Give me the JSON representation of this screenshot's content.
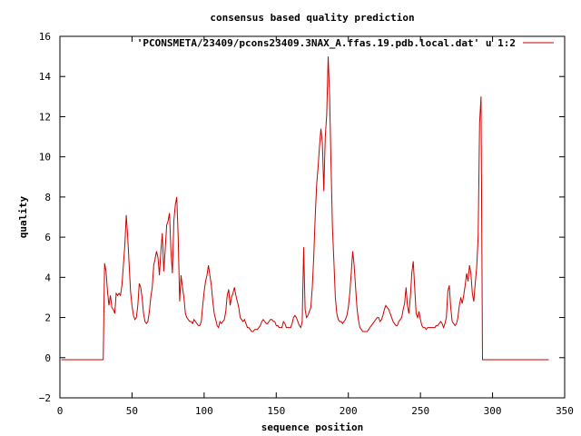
{
  "chart_data": {
    "type": "line",
    "title": "consensus based quality prediction",
    "xlabel": "sequence position",
    "ylabel": "quality",
    "xlim": [
      0,
      350
    ],
    "ylim": [
      -2,
      16
    ],
    "x_ticks": [
      0,
      50,
      100,
      150,
      200,
      250,
      300,
      350
    ],
    "y_ticks": [
      -2,
      0,
      2,
      4,
      6,
      8,
      10,
      12,
      14,
      16
    ],
    "grid": false,
    "legend_position": "top-right",
    "series": [
      {
        "name": "'PCONSMETA/23409/pcons23409.3NAX_A.ffas.19.pdb.local.dat' u 1:2",
        "color": "#cc0000",
        "points": [
          [
            1,
            -0.1
          ],
          [
            10,
            -0.1
          ],
          [
            20,
            -0.1
          ],
          [
            30,
            -0.1
          ],
          [
            31,
            4.7
          ],
          [
            32,
            4.3
          ],
          [
            33,
            3.3
          ],
          [
            34,
            2.6
          ],
          [
            35,
            3.1
          ],
          [
            36,
            2.5
          ],
          [
            37,
            2.4
          ],
          [
            38,
            2.2
          ],
          [
            39,
            3.2
          ],
          [
            40,
            3.1
          ],
          [
            41,
            3.2
          ],
          [
            42,
            3.1
          ],
          [
            43,
            3.6
          ],
          [
            44,
            4.6
          ],
          [
            45,
            5.6
          ],
          [
            46,
            7.1
          ],
          [
            47,
            6.0
          ],
          [
            48,
            4.6
          ],
          [
            49,
            3.3
          ],
          [
            50,
            2.6
          ],
          [
            51,
            2.1
          ],
          [
            52,
            1.9
          ],
          [
            53,
            2.0
          ],
          [
            54,
            2.6
          ],
          [
            55,
            3.7
          ],
          [
            56,
            3.5
          ],
          [
            57,
            3.0
          ],
          [
            58,
            2.2
          ],
          [
            59,
            1.8
          ],
          [
            60,
            1.7
          ],
          [
            61,
            1.8
          ],
          [
            62,
            2.3
          ],
          [
            63,
            3.0
          ],
          [
            64,
            3.5
          ],
          [
            65,
            4.6
          ],
          [
            66,
            4.9
          ],
          [
            67,
            5.3
          ],
          [
            68,
            5.0
          ],
          [
            69,
            4.1
          ],
          [
            70,
            5.3
          ],
          [
            71,
            6.2
          ],
          [
            72,
            4.3
          ],
          [
            73,
            5.4
          ],
          [
            74,
            6.6
          ],
          [
            75,
            6.8
          ],
          [
            76,
            7.2
          ],
          [
            77,
            5.3
          ],
          [
            78,
            4.2
          ],
          [
            79,
            6.8
          ],
          [
            80,
            7.6
          ],
          [
            81,
            8.0
          ],
          [
            82,
            6.0
          ],
          [
            83,
            2.8
          ],
          [
            84,
            4.1
          ],
          [
            85,
            3.5
          ],
          [
            86,
            3.0
          ],
          [
            87,
            2.2
          ],
          [
            88,
            2.0
          ],
          [
            89,
            1.9
          ],
          [
            90,
            1.8
          ],
          [
            91,
            1.8
          ],
          [
            92,
            1.7
          ],
          [
            93,
            1.9
          ],
          [
            94,
            1.8
          ],
          [
            95,
            1.7
          ],
          [
            96,
            1.6
          ],
          [
            97,
            1.6
          ],
          [
            98,
            1.8
          ],
          [
            99,
            2.6
          ],
          [
            100,
            3.3
          ],
          [
            101,
            3.8
          ],
          [
            102,
            4.1
          ],
          [
            103,
            4.6
          ],
          [
            104,
            4.1
          ],
          [
            105,
            3.6
          ],
          [
            106,
            2.8
          ],
          [
            107,
            2.2
          ],
          [
            108,
            1.9
          ],
          [
            109,
            1.6
          ],
          [
            110,
            1.5
          ],
          [
            111,
            1.8
          ],
          [
            112,
            1.7
          ],
          [
            113,
            1.8
          ],
          [
            114,
            1.9
          ],
          [
            115,
            2.3
          ],
          [
            116,
            3.1
          ],
          [
            117,
            3.4
          ],
          [
            118,
            2.6
          ],
          [
            119,
            3.0
          ],
          [
            120,
            3.2
          ],
          [
            121,
            3.5
          ],
          [
            122,
            3.1
          ],
          [
            123,
            2.8
          ],
          [
            124,
            2.5
          ],
          [
            125,
            2.0
          ],
          [
            126,
            1.9
          ],
          [
            127,
            1.8
          ],
          [
            128,
            1.9
          ],
          [
            129,
            1.7
          ],
          [
            130,
            1.5
          ],
          [
            131,
            1.5
          ],
          [
            132,
            1.4
          ],
          [
            133,
            1.3
          ],
          [
            134,
            1.3
          ],
          [
            135,
            1.4
          ],
          [
            136,
            1.4
          ],
          [
            137,
            1.4
          ],
          [
            138,
            1.5
          ],
          [
            139,
            1.6
          ],
          [
            140,
            1.8
          ],
          [
            141,
            1.9
          ],
          [
            142,
            1.8
          ],
          [
            143,
            1.7
          ],
          [
            144,
            1.7
          ],
          [
            145,
            1.8
          ],
          [
            146,
            1.9
          ],
          [
            147,
            1.9
          ],
          [
            148,
            1.8
          ],
          [
            149,
            1.8
          ],
          [
            150,
            1.6
          ],
          [
            151,
            1.6
          ],
          [
            152,
            1.5
          ],
          [
            153,
            1.5
          ],
          [
            154,
            1.5
          ],
          [
            155,
            1.8
          ],
          [
            156,
            1.7
          ],
          [
            157,
            1.5
          ],
          [
            158,
            1.5
          ],
          [
            159,
            1.5
          ],
          [
            160,
            1.5
          ],
          [
            161,
            1.7
          ],
          [
            162,
            2.0
          ],
          [
            163,
            2.1
          ],
          [
            164,
            2.0
          ],
          [
            165,
            1.8
          ],
          [
            166,
            1.6
          ],
          [
            167,
            1.5
          ],
          [
            168,
            1.8
          ],
          [
            169,
            5.5
          ],
          [
            170,
            2.4
          ],
          [
            171,
            2.0
          ],
          [
            172,
            2.1
          ],
          [
            173,
            2.3
          ],
          [
            174,
            2.5
          ],
          [
            175,
            3.5
          ],
          [
            176,
            5.0
          ],
          [
            177,
            7.0
          ],
          [
            178,
            8.6
          ],
          [
            179,
            9.5
          ],
          [
            180,
            10.5
          ],
          [
            181,
            11.4
          ],
          [
            182,
            10.7
          ],
          [
            183,
            8.3
          ],
          [
            184,
            11.0
          ],
          [
            185,
            12.1
          ],
          [
            186,
            15.0
          ],
          [
            187,
            13.0
          ],
          [
            188,
            9.5
          ],
          [
            189,
            6.5
          ],
          [
            190,
            4.8
          ],
          [
            191,
            3.0
          ],
          [
            192,
            2.2
          ],
          [
            193,
            1.9
          ],
          [
            194,
            1.8
          ],
          [
            195,
            1.8
          ],
          [
            196,
            1.7
          ],
          [
            197,
            1.8
          ],
          [
            198,
            1.9
          ],
          [
            199,
            2.1
          ],
          [
            200,
            2.5
          ],
          [
            201,
            3.2
          ],
          [
            202,
            4.2
          ],
          [
            203,
            5.3
          ],
          [
            204,
            4.6
          ],
          [
            205,
            3.5
          ],
          [
            206,
            2.5
          ],
          [
            207,
            1.9
          ],
          [
            208,
            1.5
          ],
          [
            209,
            1.4
          ],
          [
            210,
            1.3
          ],
          [
            211,
            1.3
          ],
          [
            212,
            1.3
          ],
          [
            213,
            1.3
          ],
          [
            214,
            1.4
          ],
          [
            215,
            1.5
          ],
          [
            216,
            1.6
          ],
          [
            217,
            1.7
          ],
          [
            218,
            1.8
          ],
          [
            219,
            1.9
          ],
          [
            220,
            2.0
          ],
          [
            221,
            2.0
          ],
          [
            222,
            1.8
          ],
          [
            223,
            1.9
          ],
          [
            224,
            2.1
          ],
          [
            225,
            2.4
          ],
          [
            226,
            2.6
          ],
          [
            227,
            2.5
          ],
          [
            228,
            2.4
          ],
          [
            229,
            2.2
          ],
          [
            230,
            2.0
          ],
          [
            231,
            1.8
          ],
          [
            232,
            1.7
          ],
          [
            233,
            1.6
          ],
          [
            234,
            1.6
          ],
          [
            235,
            1.8
          ],
          [
            236,
            1.9
          ],
          [
            237,
            2.0
          ],
          [
            238,
            2.4
          ],
          [
            239,
            2.7
          ],
          [
            240,
            3.5
          ],
          [
            241,
            2.6
          ],
          [
            242,
            2.2
          ],
          [
            243,
            3.0
          ],
          [
            244,
            4.2
          ],
          [
            245,
            4.8
          ],
          [
            246,
            3.5
          ],
          [
            247,
            2.2
          ],
          [
            248,
            2.0
          ],
          [
            249,
            2.3
          ],
          [
            250,
            1.9
          ],
          [
            251,
            1.6
          ],
          [
            252,
            1.5
          ],
          [
            253,
            1.5
          ],
          [
            254,
            1.4
          ],
          [
            255,
            1.5
          ],
          [
            256,
            1.5
          ],
          [
            257,
            1.5
          ],
          [
            258,
            1.5
          ],
          [
            259,
            1.5
          ],
          [
            260,
            1.5
          ],
          [
            261,
            1.6
          ],
          [
            262,
            1.6
          ],
          [
            263,
            1.7
          ],
          [
            264,
            1.8
          ],
          [
            265,
            1.7
          ],
          [
            266,
            1.5
          ],
          [
            267,
            1.7
          ],
          [
            268,
            2.0
          ],
          [
            269,
            3.3
          ],
          [
            270,
            3.6
          ],
          [
            271,
            2.5
          ],
          [
            272,
            1.8
          ],
          [
            273,
            1.7
          ],
          [
            274,
            1.6
          ],
          [
            275,
            1.7
          ],
          [
            276,
            2.0
          ],
          [
            277,
            2.6
          ],
          [
            278,
            3.0
          ],
          [
            279,
            2.7
          ],
          [
            280,
            3.1
          ],
          [
            281,
            3.6
          ],
          [
            282,
            4.2
          ],
          [
            283,
            3.8
          ],
          [
            284,
            4.6
          ],
          [
            285,
            4.2
          ],
          [
            286,
            3.2
          ],
          [
            287,
            2.8
          ],
          [
            288,
            3.7
          ],
          [
            289,
            4.5
          ],
          [
            290,
            6.0
          ],
          [
            291,
            11.7
          ],
          [
            292,
            13.0
          ],
          [
            293,
            -0.1
          ],
          [
            300,
            -0.1
          ],
          [
            310,
            -0.1
          ],
          [
            320,
            -0.1
          ],
          [
            330,
            -0.1
          ],
          [
            339,
            -0.1
          ]
        ]
      }
    ]
  }
}
